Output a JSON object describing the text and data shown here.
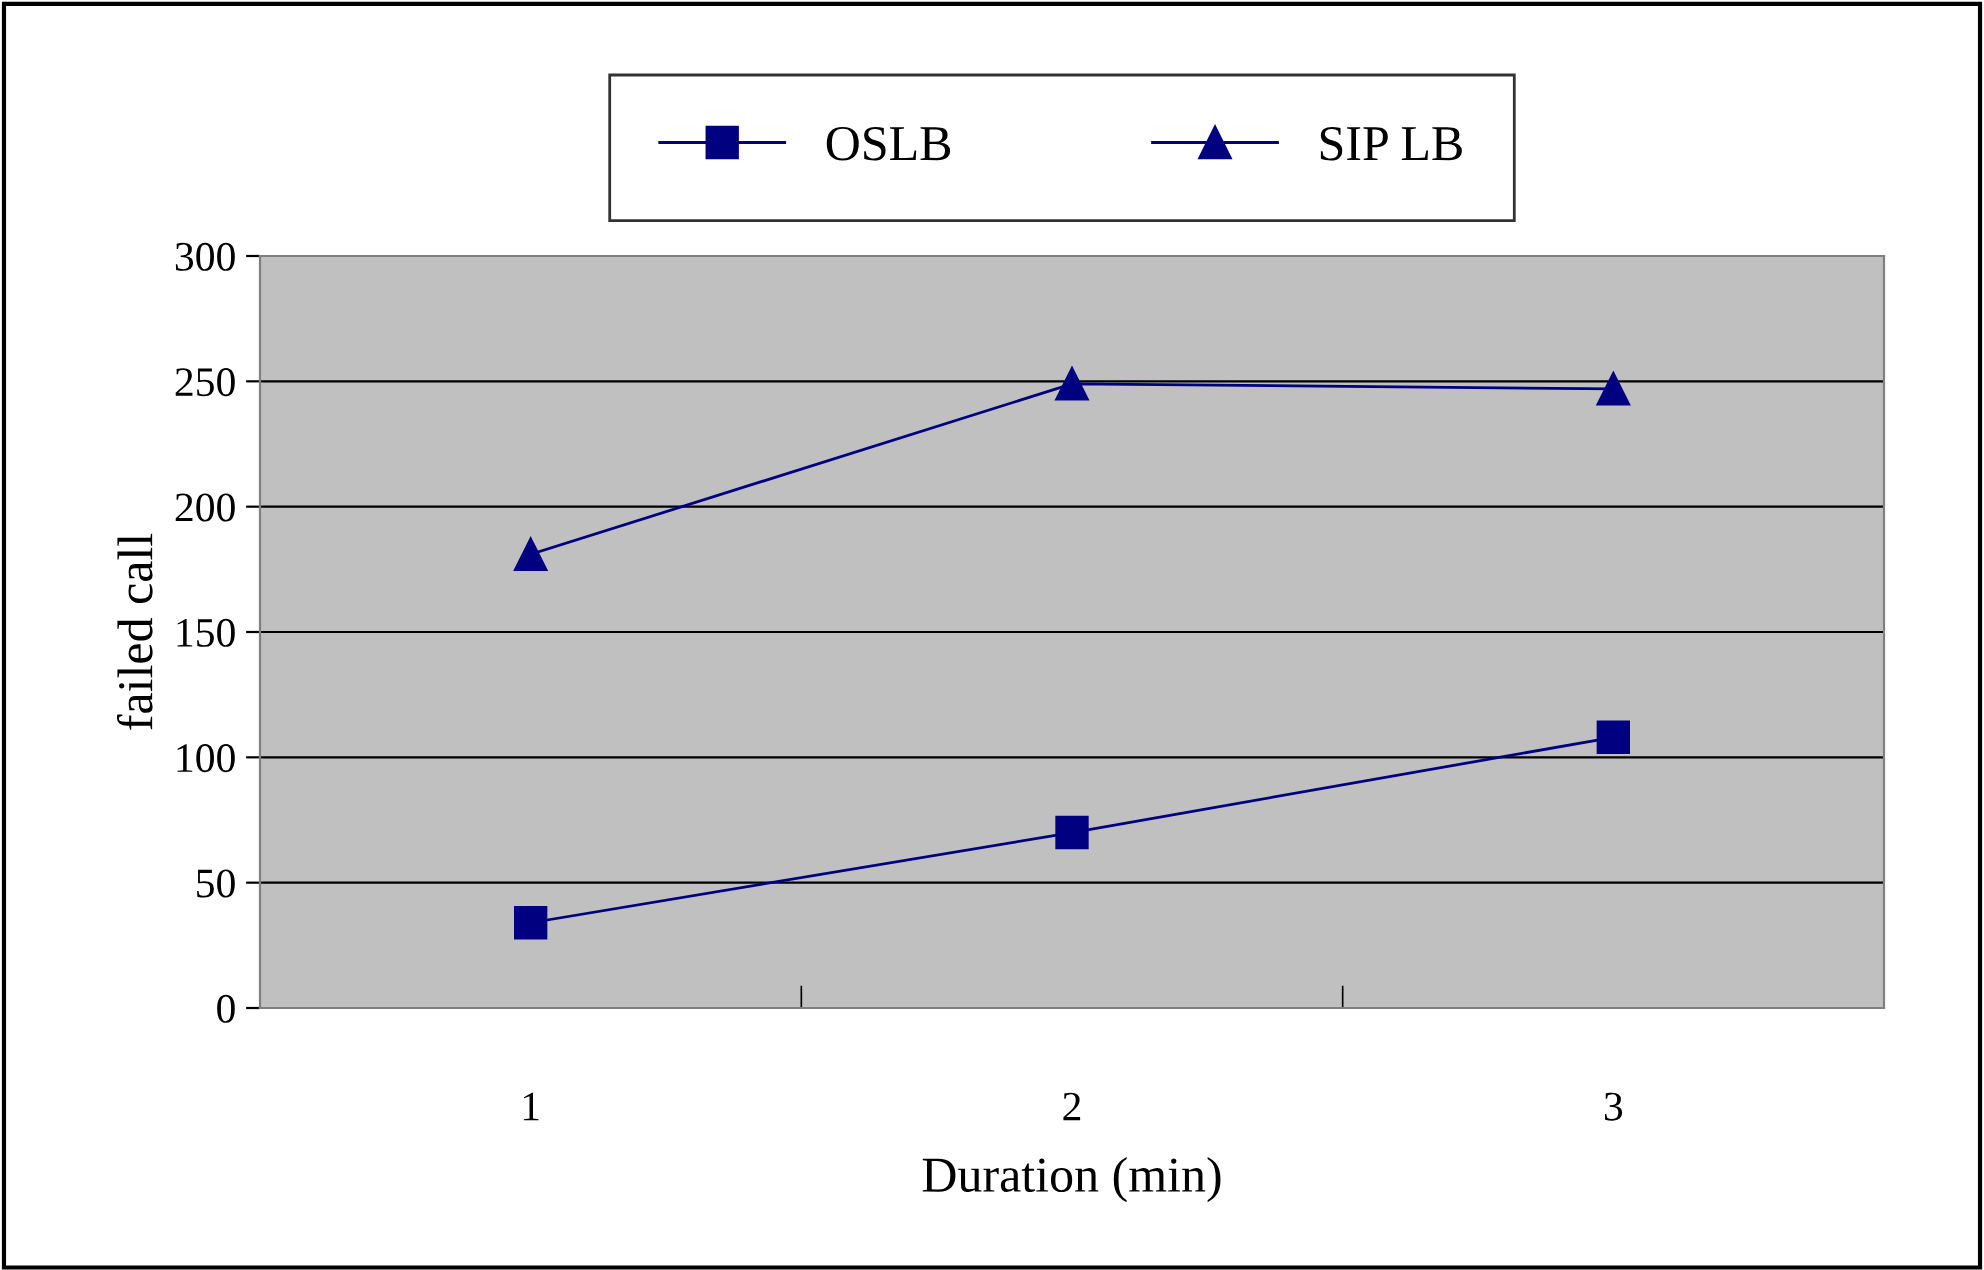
{
  "chart_data": {
    "type": "line",
    "xlabel": "Duration (min)",
    "ylabel": "failed call",
    "categories": [
      "1",
      "2",
      "3"
    ],
    "series": [
      {
        "name": "OSLB",
        "color": "#000080",
        "marker": "square",
        "values": [
          34,
          70,
          108
        ]
      },
      {
        "name": "SIP LB",
        "color": "#000080",
        "marker": "triangle",
        "values": [
          181,
          249,
          247
        ]
      }
    ],
    "ylim": [
      0,
      300
    ],
    "yticks": [
      0,
      50,
      100,
      150,
      200,
      250,
      300
    ],
    "grid": "y",
    "legend": "top",
    "line_style": "solid"
  }
}
